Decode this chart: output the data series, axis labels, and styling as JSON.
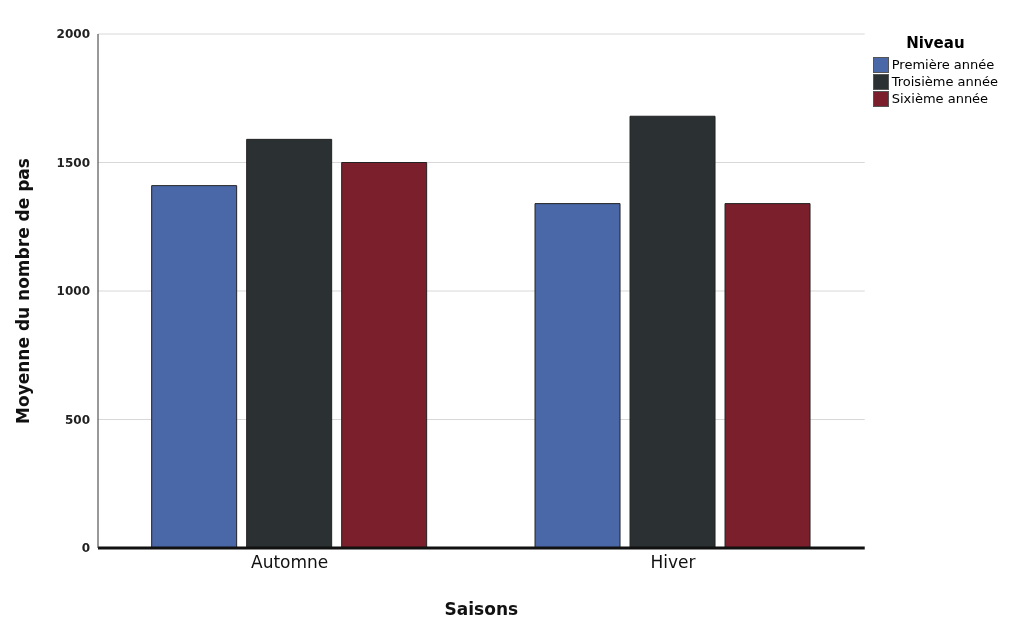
{
  "chart_data": {
    "type": "bar",
    "xlabel": "Saisons",
    "ylabel": "Moyenne du nombre de pas",
    "legend_title": "Niveau",
    "categories": [
      "Automne",
      "Hiver"
    ],
    "series": [
      {
        "name": "Première année",
        "color": "#4a67a8",
        "values": [
          1410,
          1340
        ]
      },
      {
        "name": "Troisième année",
        "color": "#2b3133",
        "values": [
          1590,
          1680
        ]
      },
      {
        "name": "Sixième année",
        "color": "#7a1f2b",
        "values": [
          1500,
          1340
        ]
      }
    ],
    "ylim": [
      0,
      2000
    ],
    "yticks": [
      0,
      500,
      1000,
      1500,
      2000
    ],
    "grid": "y",
    "legend": "top right"
  }
}
